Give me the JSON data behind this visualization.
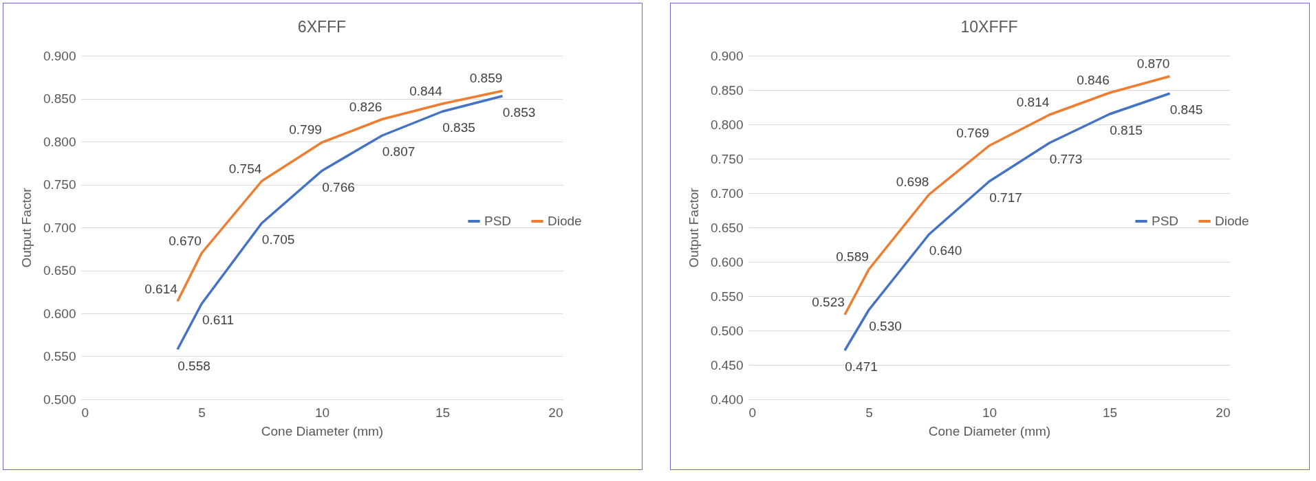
{
  "chart_data": [
    {
      "type": "line",
      "title": "6XFFF",
      "xlabel": "Cone Diameter (mm)",
      "ylabel": "Output Factor",
      "x": [
        4,
        5,
        7.5,
        10,
        12.5,
        15,
        17.5
      ],
      "series": [
        {
          "name": "PSD",
          "color": "#4472c4",
          "values": [
            0.558,
            0.611,
            0.705,
            0.766,
            0.807,
            0.835,
            0.853
          ],
          "value_labels": [
            "0.558",
            "0.611",
            "0.705",
            "0.766",
            "0.807",
            "0.835",
            "0.853"
          ]
        },
        {
          "name": "Diode",
          "color": "#ed7d31",
          "values": [
            0.614,
            0.67,
            0.754,
            0.799,
            0.826,
            0.844,
            0.859
          ],
          "value_labels": [
            "0.614",
            "0.670",
            "0.754",
            "0.799",
            "0.826",
            "0.844",
            "0.859"
          ]
        }
      ],
      "xlim": [
        0,
        20
      ],
      "xticks": [
        0,
        5,
        10,
        15,
        20
      ],
      "ylim": [
        0.5,
        0.9
      ],
      "yticks": [
        {
          "value": 0.5,
          "label": "0.500"
        },
        {
          "value": 0.55,
          "label": "0.550"
        },
        {
          "value": 0.6,
          "label": "0.600"
        },
        {
          "value": 0.65,
          "label": "0.650"
        },
        {
          "value": 0.7,
          "label": "0.700"
        },
        {
          "value": 0.75,
          "label": "0.750"
        },
        {
          "value": 0.8,
          "label": "0.800"
        },
        {
          "value": 0.85,
          "label": "0.850"
        },
        {
          "value": 0.9,
          "label": "0.900"
        }
      ],
      "grid": "y",
      "legend": "right",
      "marker": "none"
    },
    {
      "type": "line",
      "title": "10XFFF",
      "xlabel": "Cone Diameter (mm)",
      "ylabel": "Output Factor",
      "x": [
        4,
        5,
        7.5,
        10,
        12.5,
        15,
        17.5
      ],
      "series": [
        {
          "name": "PSD",
          "color": "#4472c4",
          "values": [
            0.471,
            0.53,
            0.64,
            0.717,
            0.773,
            0.815,
            0.845
          ],
          "value_labels": [
            "0.471",
            "0.530",
            "0.640",
            "0.717",
            "0.773",
            "0.815",
            "0.845"
          ]
        },
        {
          "name": "Diode",
          "color": "#ed7d31",
          "values": [
            0.523,
            0.589,
            0.698,
            0.769,
            0.814,
            0.846,
            0.87
          ],
          "value_labels": [
            "0.523",
            "0.589",
            "0.698",
            "0.769",
            "0.814",
            "0.846",
            "0.870"
          ]
        }
      ],
      "xlim": [
        0,
        20
      ],
      "xticks": [
        0,
        5,
        10,
        15,
        20
      ],
      "ylim": [
        0.4,
        0.9
      ],
      "yticks": [
        {
          "value": 0.4,
          "label": "0.400"
        },
        {
          "value": 0.45,
          "label": "0.450"
        },
        {
          "value": 0.5,
          "label": "0.500"
        },
        {
          "value": 0.55,
          "label": "0.550"
        },
        {
          "value": 0.6,
          "label": "0.600"
        },
        {
          "value": 0.65,
          "label": "0.650"
        },
        {
          "value": 0.7,
          "label": "0.700"
        },
        {
          "value": 0.75,
          "label": "0.750"
        },
        {
          "value": 0.8,
          "label": "0.800"
        },
        {
          "value": 0.85,
          "label": "0.850"
        },
        {
          "value": 0.9,
          "label": "0.900"
        }
      ],
      "grid": "y",
      "legend": "right",
      "marker": "none"
    }
  ]
}
